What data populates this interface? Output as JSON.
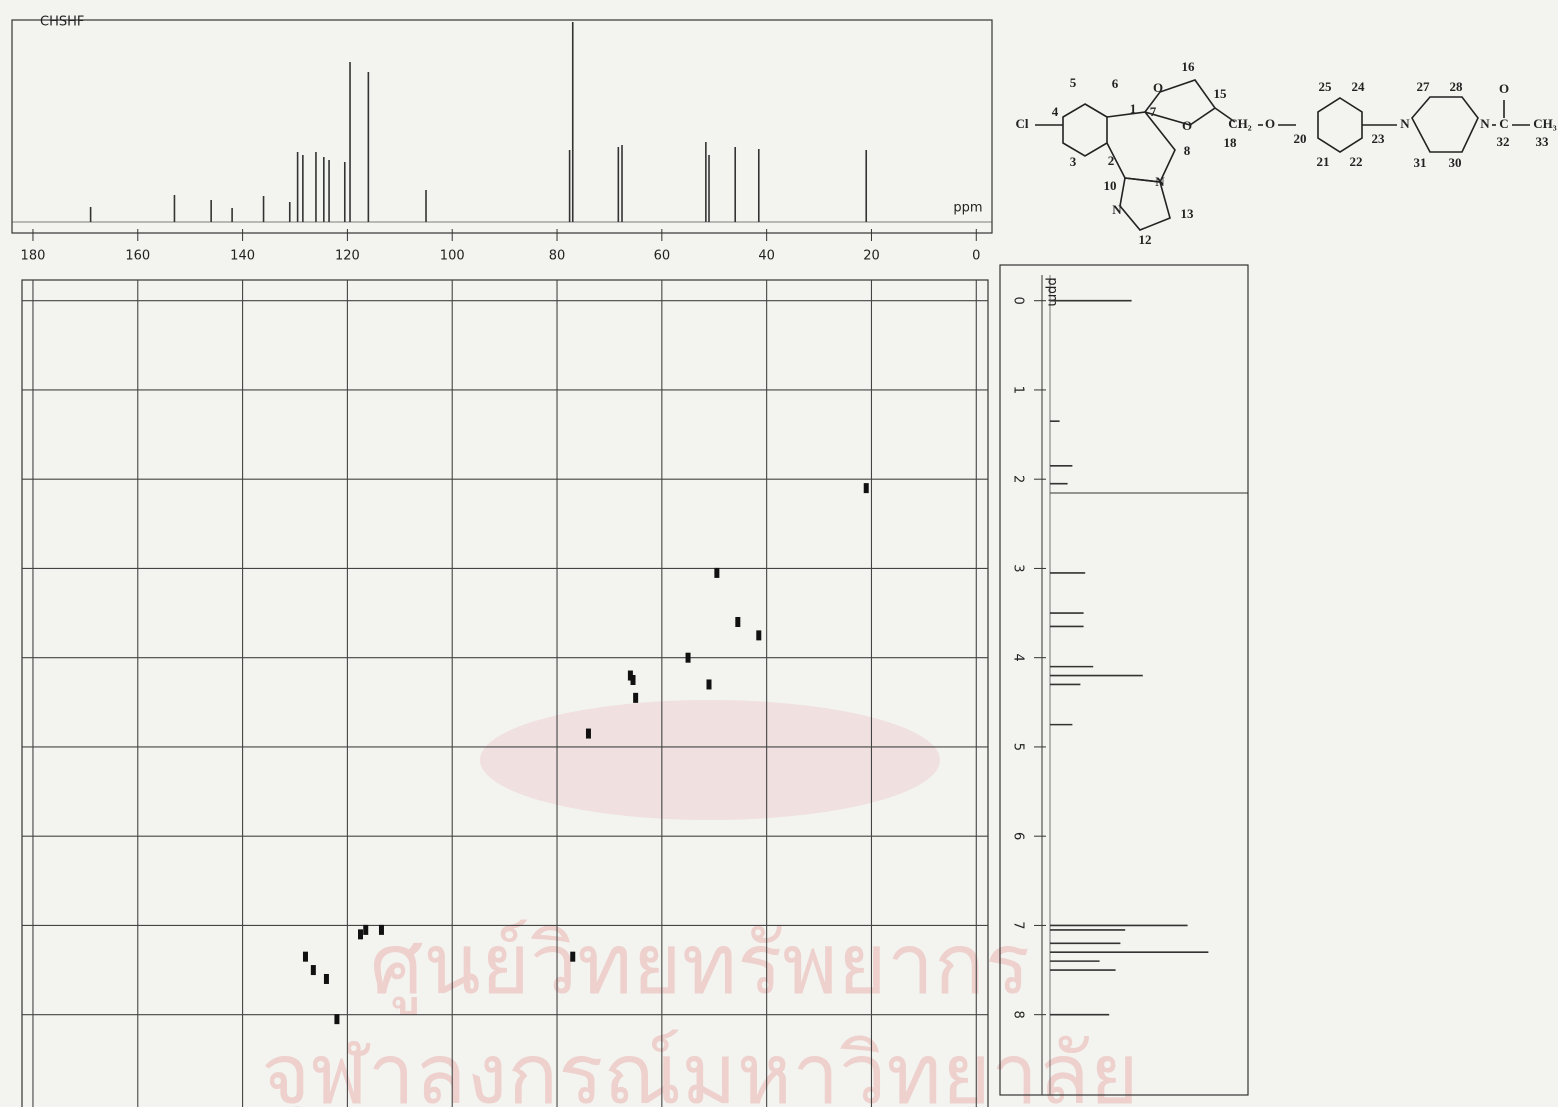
{
  "chart_data": [
    {
      "type": "spectrum",
      "title": "CHSHF",
      "axis_label": "ppm",
      "orientation": "horizontal",
      "x": [
        169,
        153,
        146,
        142,
        136,
        131,
        129.5,
        128.5,
        126,
        124.5,
        123.5,
        120.5,
        119.5,
        116,
        105,
        77,
        77.6,
        68.3,
        67.6,
        51.6,
        51,
        46,
        41.5,
        21
      ],
      "values": [
        7.5,
        13.5,
        11,
        7,
        13,
        10,
        35,
        33.5,
        35,
        32.5,
        31,
        30,
        80,
        75,
        16,
        100,
        36,
        37.5,
        38.5,
        40,
        33.5,
        37.5,
        36.5,
        36
      ],
      "xlim": [
        184,
        -3
      ],
      "ylim": [
        0,
        100
      ],
      "xticks": [
        180,
        160,
        140,
        120,
        100,
        80,
        60,
        40,
        20,
        0
      ],
      "color": "#333333"
    },
    {
      "type": "spectrum",
      "axis_label": "ppm",
      "orientation": "vertical",
      "x": [
        0,
        1.35,
        1.85,
        2.05,
        3.05,
        3.5,
        3.65,
        4.1,
        4.2,
        4.3,
        4.75,
        7.0,
        7.05,
        7.2,
        7.3,
        7.4,
        7.5,
        8.0
      ],
      "values": [
        51,
        6,
        14,
        11,
        22,
        21,
        21,
        27,
        58,
        19,
        14,
        86,
        47,
        44,
        99,
        31,
        41,
        37
      ],
      "xlim": [
        -0.4,
        8.9
      ],
      "ylim": [
        0,
        100
      ],
      "xticks": [
        0,
        1,
        2,
        3,
        4,
        5,
        6,
        7,
        8
      ],
      "color": "#333333"
    },
    {
      "type": "scatter",
      "x": [
        21,
        49.5,
        45.5,
        41.5,
        55,
        66,
        65.5,
        65,
        51,
        74,
        116.5,
        117.5,
        113.5,
        128,
        126.5,
        124,
        77,
        122
      ],
      "y": [
        2.1,
        3.05,
        3.6,
        3.75,
        4.0,
        4.2,
        4.25,
        4.45,
        4.3,
        4.85,
        7.05,
        7.1,
        7.05,
        7.35,
        7.5,
        7.6,
        7.35,
        8.05
      ],
      "xlim": [
        184,
        -3
      ],
      "ylim": [
        -0.4,
        8.9
      ],
      "xticks": [
        180,
        160,
        140,
        120,
        100,
        80,
        60,
        40,
        20,
        0
      ],
      "yticks": [
        0,
        1,
        2,
        3,
        4,
        5,
        6,
        7,
        8
      ],
      "grid": true,
      "color": "#111111"
    }
  ],
  "structure": {
    "atoms": [
      "Cl",
      "4",
      "5",
      "6",
      "1",
      "2",
      "3",
      "10",
      "N",
      "12",
      "13",
      "N",
      "8",
      "7",
      "O",
      "16",
      "15",
      "O",
      "CH₂",
      "18",
      "O",
      "25",
      "24",
      "20",
      "21",
      "22",
      "23",
      "N",
      "27",
      "28",
      "31",
      "30",
      "N",
      "C",
      "O",
      "32",
      "CH₃",
      "33"
    ]
  },
  "watermark": [
    "ศูนย์วิทยทรัพยากร",
    "จุฬาลงกรณ์มหาวิทยาลัย"
  ]
}
